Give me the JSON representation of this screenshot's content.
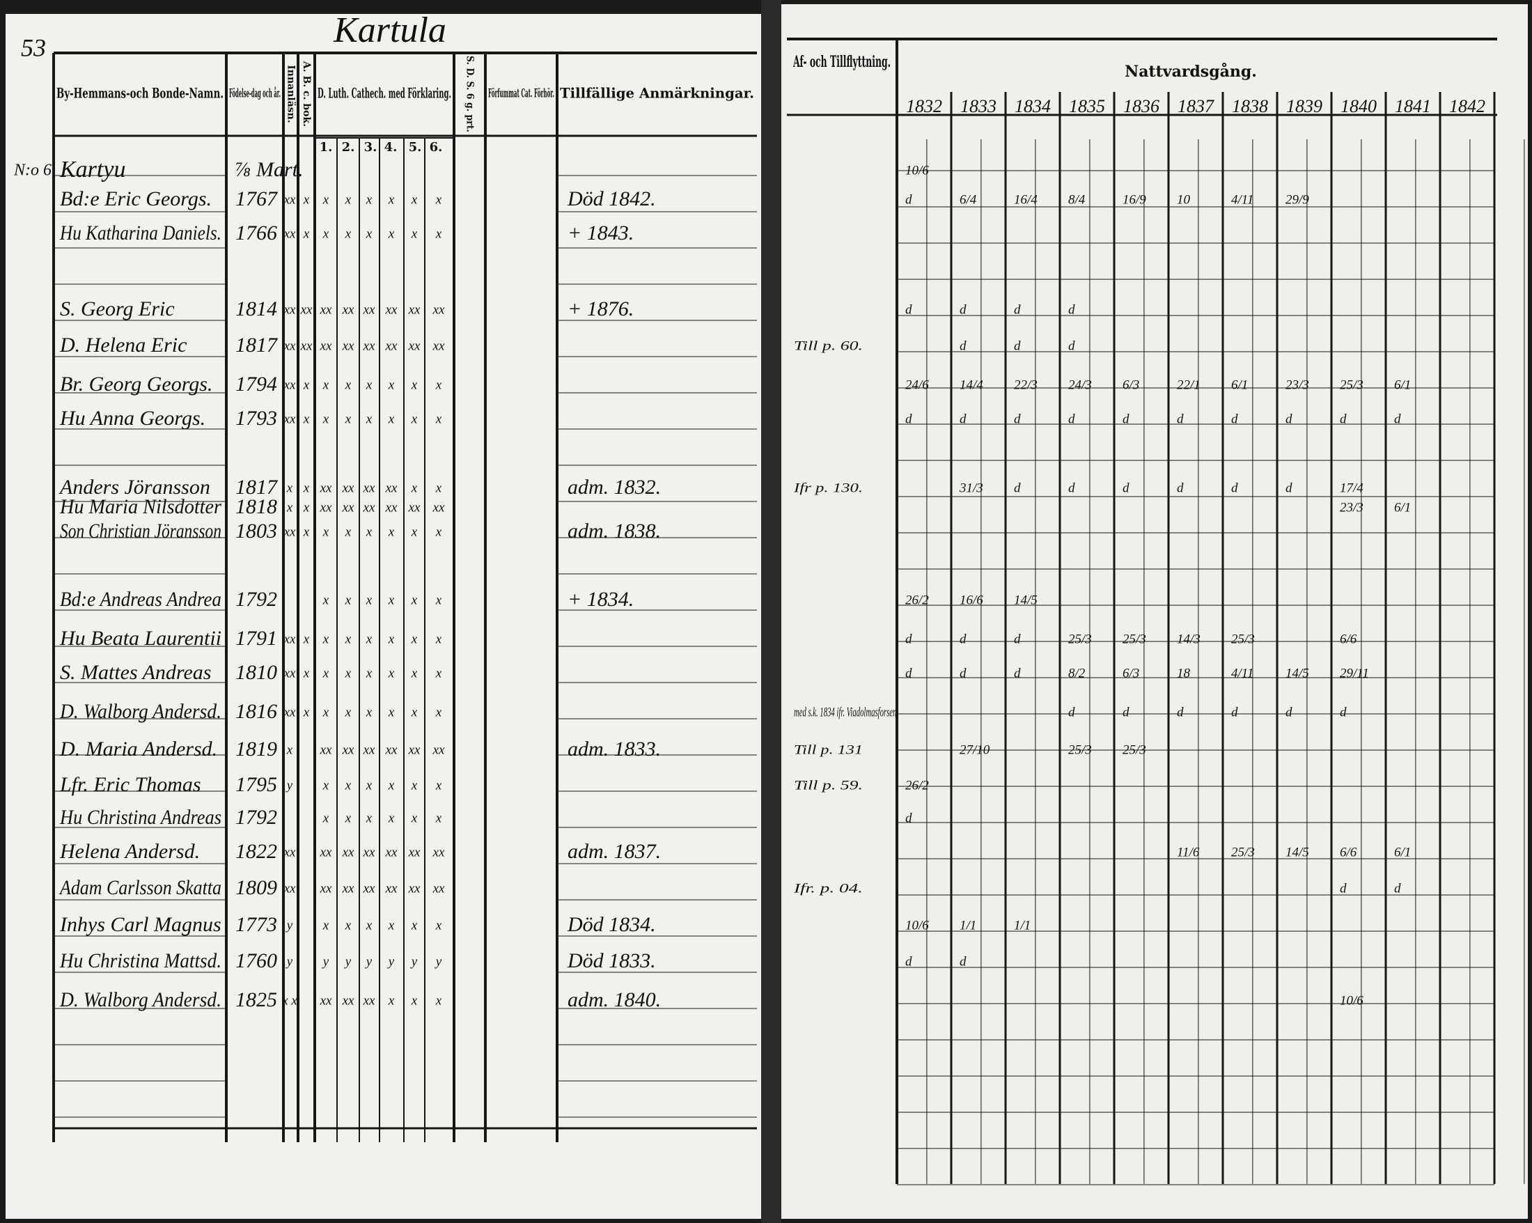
{
  "page_number": "53",
  "village_title": "Kartula",
  "left_headers": [
    "By-Hemmans-och Bonde-Namn.",
    "Födelse-dag och år.",
    "Innanläsn.",
    "A. B. c. bok.",
    "D. Luth. Cathech. med Förklaring.",
    "S. D. S. 6 g. prt.",
    "Förfummat Cat. Förhör.",
    "Tillfällige Anmärkningar."
  ],
  "catechism_columns": [
    "1.",
    "2.",
    "3.",
    "4.",
    "5.",
    "6."
  ],
  "right_headers": [
    "Af- och Tillflyttning.",
    "Nattvardsgång."
  ],
  "years": [
    "1832",
    "1833",
    "1834",
    "1835",
    "1836",
    "1837",
    "1838",
    "1839",
    "1840",
    "1841",
    "1842"
  ],
  "group_label": "N:o 6",
  "rows": [
    {
      "name": "Kartyu",
      "birth": "⅞ Mart.",
      "communion": [
        "10/6",
        null,
        null,
        null,
        null,
        null,
        null,
        null,
        null,
        null,
        null
      ]
    },
    {
      "name": "Bd:e Eric Georgs.",
      "birth": "1767",
      "readings": [
        "xx",
        "x",
        "x",
        "x",
        "x",
        "x",
        "x",
        "x"
      ],
      "remark": "Död 1842.",
      "communion": [
        "d",
        "6/4",
        "16/4",
        "8/4",
        "16/9",
        "10",
        "4/11",
        "29/9",
        null,
        null,
        null
      ]
    },
    {
      "name": "Hu Katharina Daniels.",
      "birth": "1766",
      "readings": [
        "xx",
        "x",
        "x",
        "x",
        "x",
        "x",
        "x",
        "x"
      ],
      "remark": "+ 1843."
    },
    {
      "name": "S. Georg Eric",
      "birth": "1814",
      "readings": [
        "xx",
        "xx",
        "xx",
        "xx",
        "xx",
        "xx",
        "xx",
        "xx"
      ],
      "remark": "+ 1876.",
      "communion": [
        "d",
        "d",
        "d",
        "d",
        null,
        null,
        null,
        null,
        null,
        null,
        null
      ]
    },
    {
      "name": "D. Helena Eric",
      "birth": "1817",
      "readings": [
        "xx",
        "xx",
        "xx",
        "xx",
        "xx",
        "xx",
        "xx",
        "xx"
      ],
      "moved": "Till p. 60.",
      "communion": [
        null,
        "d",
        "d",
        "d",
        null,
        null,
        null,
        null,
        null,
        null,
        null
      ]
    },
    {
      "name": "Br. Georg Georgs.",
      "birth": "1794",
      "readings": [
        "xx",
        "x",
        "x",
        "x",
        "x",
        "x",
        "x",
        "x"
      ],
      "communion": [
        "24/6",
        "14/4",
        "22/3",
        "24/3",
        "6/3",
        "22/1",
        "6/1",
        "23/3",
        "25/3",
        "6/1",
        null
      ]
    },
    {
      "name": "Hu Anna Georgs.",
      "birth": "1793",
      "readings": [
        "xx",
        "x",
        "x",
        "x",
        "x",
        "x",
        "x",
        "x"
      ],
      "communion": [
        "d",
        "d",
        "d",
        "d",
        "d",
        "d",
        "d",
        "d",
        "d",
        "d",
        null
      ]
    },
    {
      "name": "Anders Jöransson",
      "birth": "1817",
      "readings": [
        "x",
        "x",
        "xx",
        "xx",
        "xx",
        "xx",
        "x",
        "x"
      ],
      "remark": "adm. 1832.",
      "moved": "Ifr p. 130.",
      "communion": [
        null,
        "31/3",
        "d",
        "d",
        "d",
        "d",
        "d",
        "d",
        "17/4",
        null,
        null
      ]
    },
    {
      "name": "Hu Maria Nilsdotter",
      "birth": "1818",
      "readings": [
        "x",
        "x",
        "xx",
        "xx",
        "xx",
        "xx",
        "xx",
        "xx"
      ],
      "communion": [
        null,
        null,
        null,
        null,
        null,
        null,
        null,
        null,
        "23/3",
        "6/1",
        null
      ]
    },
    {
      "name": "Son Christian Jöransson",
      "birth": "1803",
      "readings": [
        "xx",
        "x",
        "x",
        "x",
        "x",
        "x",
        "x",
        "x"
      ],
      "remark": "adm. 1838."
    },
    {
      "name": "Bd:e Andreas Andrea",
      "birth": "1792",
      "readings": [
        "",
        "",
        "x",
        "x",
        "x",
        "x",
        "x",
        "x"
      ],
      "remark": "+ 1834.",
      "communion": [
        "26/2",
        "16/6",
        "14/5",
        null,
        null,
        null,
        null,
        null,
        null,
        null,
        null
      ]
    },
    {
      "name": "Hu Beata Laurentii",
      "birth": "1791",
      "readings": [
        "xx",
        "x",
        "x",
        "x",
        "x",
        "x",
        "x",
        "x"
      ],
      "communion": [
        "d",
        "d",
        "d",
        "25/3",
        "25/3",
        "14/3",
        "25/3",
        null,
        "6/6",
        null,
        null
      ]
    },
    {
      "name": "S. Mattes Andreas",
      "birth": "1810",
      "readings": [
        "xx",
        "x",
        "x",
        "x",
        "x",
        "x",
        "x",
        "x"
      ],
      "communion": [
        "d",
        "d",
        "d",
        "8/2",
        "6/3",
        "18",
        "4/11",
        "14/5",
        "29/11",
        null,
        null
      ]
    },
    {
      "name": "D. Walborg Andersd.",
      "birth": "1816",
      "readings": [
        "xx",
        "x",
        "x",
        "x",
        "x",
        "x",
        "x",
        "x"
      ],
      "moved": "med s.k. 1834 ifr. Viadolmasforsen.",
      "communion": [
        null,
        null,
        null,
        "d",
        "d",
        "d",
        "d",
        "d",
        "d",
        null,
        null
      ]
    },
    {
      "name": "D. Maria Andersd.",
      "birth": "1819",
      "readings": [
        "x",
        "",
        "xx",
        "xx",
        "xx",
        "xx",
        "xx",
        "xx"
      ],
      "remark": "adm. 1833.",
      "moved": "Till p. 131",
      "communion": [
        null,
        "27/10",
        null,
        "25/3",
        "25/3",
        null,
        null,
        null,
        null,
        null,
        null
      ]
    },
    {
      "name": "Lfr. Eric Thomas",
      "birth": "1795",
      "readings": [
        "y",
        "",
        "x",
        "x",
        "x",
        "x",
        "x",
        "x"
      ],
      "moved": "Till p. 59.",
      "communion": [
        "26/2",
        null,
        null,
        null,
        null,
        null,
        null,
        null,
        null,
        null,
        null
      ]
    },
    {
      "name": "Hu Christina Andreas",
      "birth": "1792",
      "readings": [
        "",
        "",
        "x",
        "x",
        "x",
        "x",
        "x",
        "x"
      ],
      "communion": [
        "d",
        null,
        null,
        null,
        null,
        null,
        null,
        null,
        null,
        null,
        null
      ]
    },
    {
      "name": "Helena Andersd.",
      "birth": "1822",
      "readings": [
        "xx",
        "",
        "xx",
        "xx",
        "xx",
        "xx",
        "xx",
        "xx"
      ],
      "remark": "adm. 1837.",
      "communion": [
        null,
        null,
        null,
        null,
        null,
        "11/6",
        "25/3",
        "14/5",
        "6/6",
        "6/1",
        null
      ]
    },
    {
      "name": "Adam Carlsson Skatta",
      "birth": "1809",
      "readings": [
        "xx",
        "",
        "xx",
        "xx",
        "xx",
        "xx",
        "xx",
        "xx"
      ],
      "moved": "Ifr. p. 04.",
      "communion": [
        null,
        null,
        null,
        null,
        null,
        null,
        null,
        null,
        "d",
        "d",
        null
      ]
    },
    {
      "name": "Inhys Carl Magnus",
      "birth": "1773",
      "readings": [
        "y",
        "",
        "x",
        "x",
        "x",
        "x",
        "x",
        "x"
      ],
      "remark": "Död 1834.",
      "communion": [
        "10/6",
        "1/1",
        "1/1",
        null,
        null,
        null,
        null,
        null,
        null,
        null,
        null
      ]
    },
    {
      "name": "Hu Christina Mattsd.",
      "birth": "1760",
      "readings": [
        "y",
        "",
        "y",
        "y",
        "y",
        "y",
        "y",
        "y"
      ],
      "remark": "Död 1833.",
      "communion": [
        "d",
        "d",
        null,
        null,
        null,
        null,
        null,
        null,
        null,
        null,
        null
      ]
    },
    {
      "name": "D. Walborg Andersd.",
      "birth": "1825",
      "readings": [
        "x x",
        "",
        "xx",
        "xx",
        "xx",
        "x",
        "x",
        "x"
      ],
      "remark": "adm. 1840.",
      "communion": [
        null,
        null,
        null,
        null,
        null,
        null,
        null,
        null,
        "10/6",
        null,
        null
      ]
    }
  ]
}
